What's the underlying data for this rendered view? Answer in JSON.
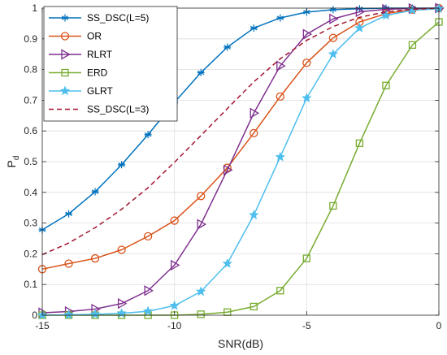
{
  "chart_data": {
    "type": "line",
    "xlabel": "SNR(dB)",
    "ylabel": "P",
    "ylabel_sub": "d",
    "xlim": [
      -15,
      0
    ],
    "ylim": [
      0,
      1
    ],
    "xticks": [
      -15,
      -10,
      -5,
      0
    ],
    "yticks": [
      0,
      0.1,
      0.2,
      0.3,
      0.4,
      0.5,
      0.6,
      0.7,
      0.8,
      0.9,
      1
    ],
    "grid": true,
    "legend_position": "top-left",
    "x": [
      -15,
      -14,
      -13,
      -12,
      -11,
      -10,
      -9,
      -8,
      -7,
      -6,
      -5,
      -4,
      -3,
      -2,
      -1,
      0
    ],
    "series": [
      {
        "name": "SS_DSC(L=5)",
        "color": "#0072BD",
        "marker": "asterisk",
        "line": "solid",
        "values": [
          0.278,
          0.33,
          0.402,
          0.49,
          0.588,
          0.693,
          0.79,
          0.873,
          0.935,
          0.968,
          0.987,
          0.995,
          0.998,
          1.0,
          1.0,
          1.0
        ]
      },
      {
        "name": "OR",
        "color": "#D95319",
        "marker": "circle",
        "line": "solid",
        "values": [
          0.15,
          0.168,
          0.185,
          0.213,
          0.257,
          0.308,
          0.388,
          0.48,
          0.593,
          0.712,
          0.822,
          0.903,
          0.955,
          0.982,
          0.995,
          1.0
        ]
      },
      {
        "name": "RLRT",
        "color": "#7E2F8E",
        "marker": "triangle-right",
        "line": "solid",
        "values": [
          0.008,
          0.012,
          0.02,
          0.038,
          0.08,
          0.163,
          0.296,
          0.473,
          0.658,
          0.812,
          0.915,
          0.965,
          0.988,
          0.996,
          0.999,
          1.0
        ]
      },
      {
        "name": "ERD",
        "color": "#77AC30",
        "marker": "square",
        "line": "solid",
        "values": [
          0.0,
          0.0,
          0.0,
          0.0,
          0.0,
          0.0,
          0.003,
          0.01,
          0.028,
          0.08,
          0.185,
          0.356,
          0.56,
          0.748,
          0.88,
          0.955
        ]
      },
      {
        "name": "GLRT",
        "color": "#4DBEEE",
        "marker": "star",
        "line": "solid",
        "values": [
          0.0,
          0.001,
          0.003,
          0.006,
          0.013,
          0.031,
          0.077,
          0.168,
          0.326,
          0.515,
          0.707,
          0.85,
          0.935,
          0.976,
          0.993,
          0.998
        ]
      },
      {
        "name": "SS_DSC(L=3)",
        "color": "#A2142F",
        "marker": "none",
        "line": "dashed",
        "values": [
          0.197,
          0.235,
          0.285,
          0.345,
          0.415,
          0.498,
          0.585,
          0.673,
          0.76,
          0.835,
          0.895,
          0.94,
          0.97,
          0.988,
          0.996,
          1.0
        ]
      }
    ]
  }
}
